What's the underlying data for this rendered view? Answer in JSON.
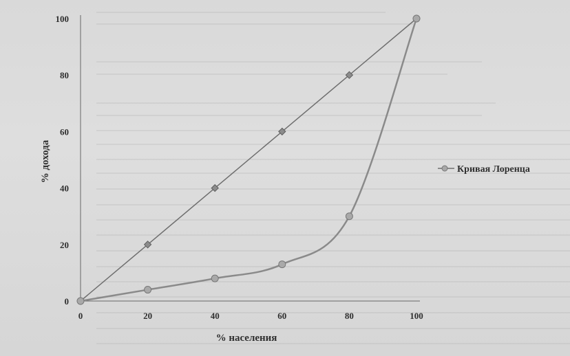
{
  "chart_data": {
    "type": "line",
    "title": "",
    "xlabel": "% населения",
    "ylabel": "% дохода",
    "x": [
      0,
      20,
      40,
      60,
      80,
      100
    ],
    "x_ticks": [
      "0",
      "20",
      "40",
      "60",
      "80",
      "100"
    ],
    "y_ticks": [
      "0",
      "20",
      "40",
      "60",
      "80",
      "100"
    ],
    "xlim": [
      0,
      100
    ],
    "ylim": [
      0,
      100
    ],
    "grid": false,
    "legend_position": "right",
    "series": [
      {
        "name": "",
        "values": [
          0,
          20,
          40,
          60,
          80,
          100
        ],
        "color": "#6e6e6e",
        "marker": "diamond"
      },
      {
        "name": "Кривая Лоренца",
        "values": [
          0,
          4,
          8,
          13,
          30,
          100
        ],
        "color": "#8a8a8a",
        "marker": "circle"
      }
    ]
  }
}
